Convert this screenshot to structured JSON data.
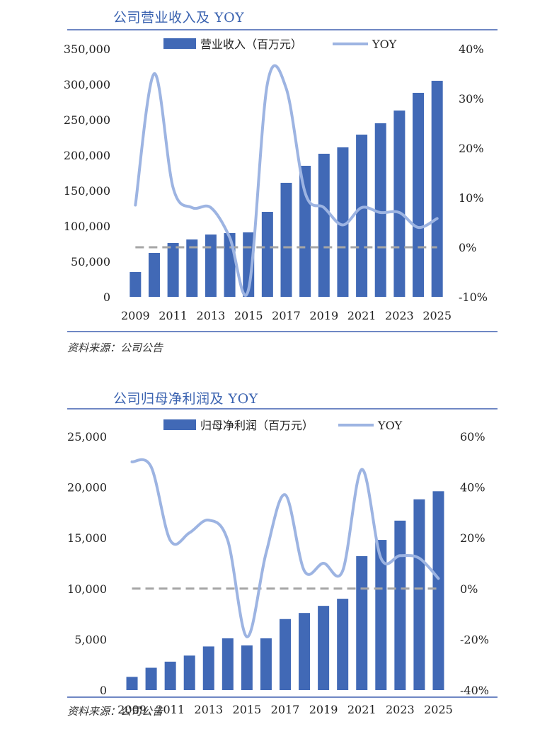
{
  "colors": {
    "bar": "#4169b6",
    "line": "#9db4e2",
    "zero_line": "#a6a6a6",
    "rule": "#6f87c4",
    "title": "#3b63b0"
  },
  "chart_data": [
    {
      "type": "bar",
      "title": "公司营业收入及 YOY",
      "source": "资料来源：公司公告",
      "categories": [
        "2009",
        "2010",
        "2011",
        "2012",
        "2013",
        "2014",
        "2015",
        "2016",
        "2017",
        "2018",
        "2019",
        "2020",
        "2021",
        "2022",
        "2023",
        "2024",
        "2025"
      ],
      "x_tick_labels": [
        "2009",
        "2011",
        "2013",
        "2015",
        "2017",
        "2019",
        "2021",
        "2023",
        "2025"
      ],
      "series": [
        {
          "name": "营业收入（百万元）",
          "type": "bar",
          "axis": "left",
          "values": [
            35000,
            62000,
            76000,
            81000,
            88000,
            90000,
            91000,
            120000,
            161000,
            185000,
            202000,
            211000,
            229000,
            245000,
            263000,
            288000,
            305000
          ]
        },
        {
          "name": "YOY",
          "type": "line",
          "axis": "right",
          "unit": "%",
          "values": [
            8.5,
            35,
            12,
            8,
            8,
            2,
            -8.5,
            33,
            32,
            11,
            8,
            4.5,
            8,
            7,
            7,
            4,
            5.8
          ]
        }
      ],
      "y_left": {
        "min": 0,
        "max": 350000,
        "step": 50000,
        "tick_labels": [
          "0",
          "50,000",
          "100,000",
          "150,000",
          "200,000",
          "250,000",
          "300,000",
          "350,000"
        ]
      },
      "y_right": {
        "min": -10,
        "max": 40,
        "step": 10,
        "tick_labels": [
          "-10%",
          "0%",
          "10%",
          "20%",
          "30%",
          "40%"
        ]
      },
      "reference_line": {
        "axis": "right",
        "value": 0,
        "style": "dashed"
      },
      "legend": {
        "position": "top"
      },
      "grid": false
    },
    {
      "type": "bar",
      "title": "公司归母净利润及 YOY",
      "source": "资料来源：公司公告",
      "categories": [
        "2009",
        "2010",
        "2011",
        "2012",
        "2013",
        "2014",
        "2015",
        "2016",
        "2017",
        "2018",
        "2019",
        "2020",
        "2021",
        "2022",
        "2023",
        "2024",
        "2025"
      ],
      "x_tick_labels": [
        "2009",
        "2011",
        "2013",
        "2015",
        "2017",
        "2019",
        "2021",
        "2023",
        "2025"
      ],
      "series": [
        {
          "name": "归母净利润（百万元）",
          "type": "bar",
          "axis": "left",
          "values": [
            1300,
            2200,
            2800,
            3400,
            4300,
            5100,
            4400,
            5100,
            7000,
            7600,
            8300,
            9000,
            13200,
            14800,
            16700,
            18800,
            19600
          ]
        },
        {
          "name": "YOY",
          "type": "line",
          "axis": "right",
          "unit": "%",
          "values": [
            50,
            48,
            19,
            22,
            27,
            19,
            -19,
            14,
            37,
            7,
            10,
            7,
            47,
            12,
            13,
            12,
            4
          ]
        }
      ],
      "y_left": {
        "min": 0,
        "max": 25000,
        "step": 5000,
        "tick_labels": [
          "0",
          "5,000",
          "10,000",
          "15,000",
          "20,000",
          "25,000"
        ]
      },
      "y_right": {
        "min": -40,
        "max": 60,
        "step": 20,
        "tick_labels": [
          "-40%",
          "-20%",
          "0%",
          "20%",
          "40%",
          "60%"
        ]
      },
      "reference_line": {
        "axis": "right",
        "value": 0,
        "style": "dashed"
      },
      "legend": {
        "position": "top"
      },
      "grid": false
    }
  ]
}
